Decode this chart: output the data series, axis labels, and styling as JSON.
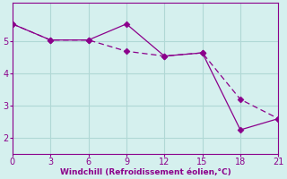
{
  "xlabel": "Windchill (Refroidissement éolien,°C)",
  "line1_x": [
    0,
    3,
    6,
    9,
    12,
    15,
    18,
    21
  ],
  "line1_y": [
    5.55,
    5.05,
    5.05,
    4.7,
    4.55,
    4.65,
    3.2,
    2.6
  ],
  "line2_x": [
    0,
    3,
    6,
    9,
    12,
    15,
    18,
    21
  ],
  "line2_y": [
    5.55,
    5.05,
    5.05,
    5.55,
    4.55,
    4.65,
    2.25,
    2.6
  ],
  "line_color": "#8B008B",
  "bg_color": "#d5f0ee",
  "grid_color": "#b0d8d5",
  "xlim": [
    0,
    21
  ],
  "ylim": [
    1.5,
    6.2
  ],
  "xticks": [
    0,
    3,
    6,
    9,
    12,
    15,
    18,
    21
  ],
  "yticks": [
    2,
    3,
    4,
    5
  ],
  "markersize": 3.5,
  "label_fontsize": 6.5,
  "tick_fontsize": 7.0
}
